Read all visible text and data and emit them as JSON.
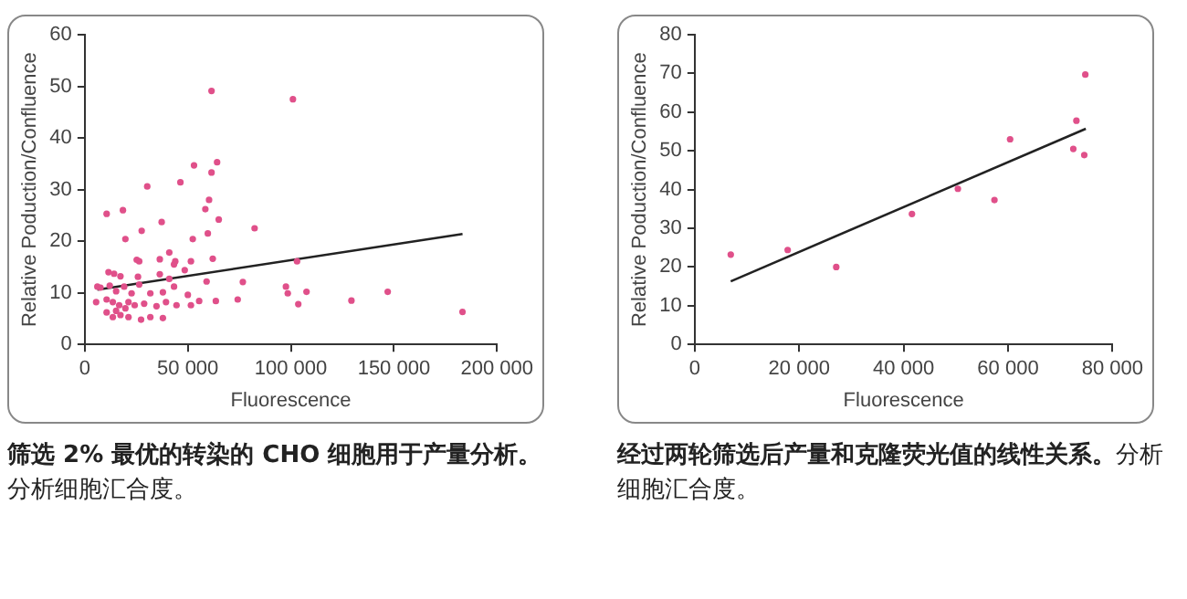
{
  "chart_data": [
    {
      "type": "scatter",
      "title": "筛选 2% 最优的转染的 CHO 细胞用于产量分析。",
      "annotations": [
        "分析细胞汇合度。"
      ],
      "xlabel": "Fluorescence",
      "ylabel": "Relative Poduction/Confluence",
      "xlim": [
        0,
        200000
      ],
      "xticks": [
        0,
        {
          "value": 50000,
          "label": "50 000"
        },
        {
          "value": 100000,
          "label": "100 000"
        },
        {
          "value": 150000,
          "label": "150 000"
        },
        {
          "value": 200000,
          "label": "200 000"
        }
      ],
      "ylim": [
        0,
        60
      ],
      "yticks": [
        0,
        10,
        20,
        30,
        40,
        50,
        60
      ],
      "grid": false,
      "legend": false,
      "marker": "circle",
      "series": [
        {
          "type": "scatter",
          "color": "#e0508a",
          "x": [
            61500,
            101000,
            30300,
            46400,
            53000,
            64200,
            61500,
            60300,
            58500,
            10600,
            18500,
            27600,
            37300,
            65000,
            82400,
            19700,
            52400,
            59700,
            41000,
            25200,
            26400,
            36400,
            43900,
            51500,
            62100,
            103000,
            11500,
            14200,
            17300,
            25800,
            36400,
            41000,
            43300,
            48500,
            59100,
            76700,
            7600,
            12100,
            15200,
            19100,
            22700,
            26400,
            31800,
            37900,
            43300,
            50000,
            97600,
            98500,
            107600,
            129400,
            147000,
            183300,
            5500,
            10600,
            13600,
            16700,
            21200,
            24200,
            28800,
            34800,
            39400,
            44500,
            51500,
            55500,
            63600,
            74200,
            103600,
            10600,
            13600,
            17300,
            21200,
            27300,
            31800,
            37900,
            15200,
            19700,
            6100
          ],
          "values": [
            49.1,
            47.5,
            30.6,
            31.4,
            34.7,
            35.3,
            33.3,
            28.0,
            26.2,
            25.3,
            26.0,
            22.0,
            23.7,
            24.2,
            22.5,
            20.4,
            20.4,
            21.5,
            17.8,
            16.4,
            16.1,
            16.5,
            16.1,
            16.1,
            16.6,
            16.1,
            14.0,
            13.7,
            13.2,
            13.1,
            13.6,
            12.7,
            15.5,
            14.4,
            12.2,
            12.1,
            11.0,
            11.4,
            10.3,
            11.2,
            9.9,
            11.6,
            9.9,
            10.1,
            11.2,
            9.6,
            11.2,
            9.9,
            10.2,
            8.5,
            10.2,
            6.3,
            8.2,
            8.7,
            8.2,
            7.6,
            8.2,
            7.6,
            7.9,
            7.4,
            8.2,
            7.6,
            7.6,
            8.4,
            8.4,
            8.7,
            7.8,
            6.2,
            5.3,
            5.7,
            5.3,
            4.8,
            5.3,
            5.1,
            6.5,
            7.0,
            11.2
          ]
        },
        {
          "type": "line",
          "color": "#222222",
          "marker": "none",
          "x": [
            6100,
            183300
          ],
          "values": [
            10.6,
            21.4
          ]
        }
      ]
    },
    {
      "type": "scatter",
      "title": "经过两轮筛选后产量和克隆荧光值的线性关系。",
      "annotations": [
        "分析细胞汇合度。"
      ],
      "xlabel": "Fluorescence",
      "ylabel": "Relative Poduction/Confluence",
      "xlim": [
        0,
        80000
      ],
      "xticks": [
        0,
        {
          "value": 20000,
          "label": "20 000"
        },
        {
          "value": 40000,
          "label": "40 000"
        },
        {
          "value": 60000,
          "label": "60 000"
        },
        {
          "value": 80000,
          "label": "80 000"
        }
      ],
      "ylim": [
        0,
        80
      ],
      "yticks": [
        0,
        10,
        20,
        30,
        40,
        50,
        60,
        70,
        80
      ],
      "grid": false,
      "legend": false,
      "marker": "circle",
      "series": [
        {
          "type": "scatter",
          "color": "#e0508a",
          "x": [
            6900,
            17800,
            27100,
            41600,
            50400,
            57400,
            60400,
            72500,
            73100,
            74600,
            74800
          ],
          "values": [
            23.2,
            24.4,
            20.0,
            33.7,
            40.2,
            37.3,
            53.0,
            50.5,
            57.8,
            48.9,
            69.7
          ]
        },
        {
          "type": "line",
          "color": "#222222",
          "marker": "none",
          "x": [
            6900,
            74900
          ],
          "values": [
            16.3,
            55.7
          ]
        }
      ]
    }
  ]
}
